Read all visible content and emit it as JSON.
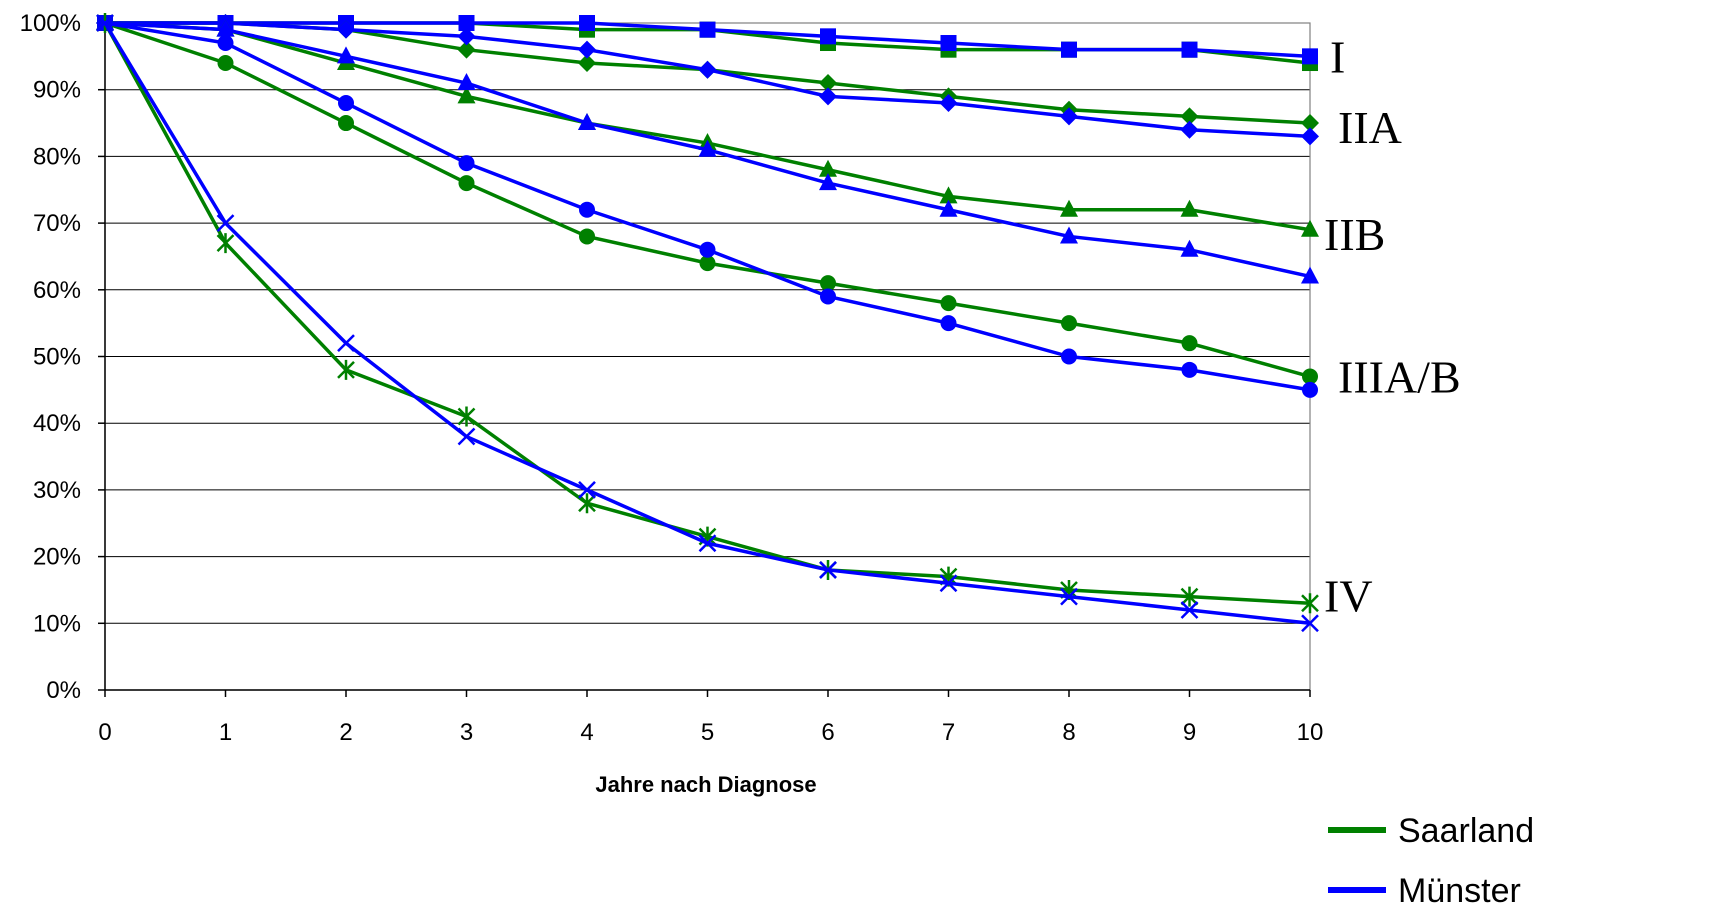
{
  "chart_data": {
    "type": "line",
    "xlabel": "Jahre nach Diagnose",
    "ylabel": "",
    "x": [
      0,
      1,
      2,
      3,
      4,
      5,
      6,
      7,
      8,
      9,
      10
    ],
    "ylim": [
      0,
      100
    ],
    "yticks": [
      "0%",
      "10%",
      "20%",
      "30%",
      "40%",
      "50%",
      "60%",
      "70%",
      "80%",
      "90%",
      "100%"
    ],
    "grid": true,
    "legend_position": "bottom-right",
    "legend": [
      {
        "name": "Saarland",
        "color": "#008000"
      },
      {
        "name": "Münster",
        "color": "#0000FF"
      }
    ],
    "series": [
      {
        "stage": "I",
        "region": "Saarland",
        "color": "#008000",
        "marker": "square",
        "values": [
          100,
          100,
          100,
          100,
          99,
          99,
          97,
          96,
          96,
          96,
          94
        ]
      },
      {
        "stage": "I",
        "region": "Münster",
        "color": "#0000FF",
        "marker": "square",
        "values": [
          100,
          100,
          100,
          100,
          100,
          99,
          98,
          97,
          96,
          96,
          95
        ]
      },
      {
        "stage": "IIA",
        "region": "Saarland",
        "color": "#008000",
        "marker": "diamond",
        "values": [
          100,
          100,
          99,
          96,
          94,
          93,
          91,
          89,
          87,
          86,
          85
        ]
      },
      {
        "stage": "IIA",
        "region": "Münster",
        "color": "#0000FF",
        "marker": "diamond",
        "values": [
          100,
          100,
          99,
          98,
          96,
          93,
          89,
          88,
          86,
          84,
          83
        ]
      },
      {
        "stage": "IIB",
        "region": "Saarland",
        "color": "#008000",
        "marker": "triangle",
        "values": [
          100,
          99,
          94,
          89,
          85,
          82,
          78,
          74,
          72,
          72,
          69
        ]
      },
      {
        "stage": "IIB",
        "region": "Münster",
        "color": "#0000FF",
        "marker": "triangle",
        "values": [
          100,
          99,
          95,
          91,
          85,
          81,
          76,
          72,
          68,
          66,
          62
        ]
      },
      {
        "stage": "IIIA/B",
        "region": "Saarland",
        "color": "#008000",
        "marker": "circle",
        "values": [
          100,
          94,
          85,
          76,
          68,
          64,
          61,
          58,
          55,
          52,
          47
        ]
      },
      {
        "stage": "IIIA/B",
        "region": "Münster",
        "color": "#0000FF",
        "marker": "circle",
        "values": [
          100,
          97,
          88,
          79,
          72,
          66,
          59,
          55,
          50,
          48,
          45
        ]
      },
      {
        "stage": "IV",
        "region": "Saarland",
        "color": "#008000",
        "marker": "star",
        "values": [
          100,
          67,
          48,
          41,
          28,
          23,
          18,
          17,
          15,
          14,
          13
        ]
      },
      {
        "stage": "IV",
        "region": "Münster",
        "color": "#0000FF",
        "marker": "x",
        "values": [
          100,
          70,
          52,
          38,
          30,
          22,
          18,
          16,
          14,
          12,
          10
        ]
      }
    ],
    "annotations": [
      "I",
      "IIA",
      "IIB",
      "IIIA/B",
      "IV"
    ]
  }
}
